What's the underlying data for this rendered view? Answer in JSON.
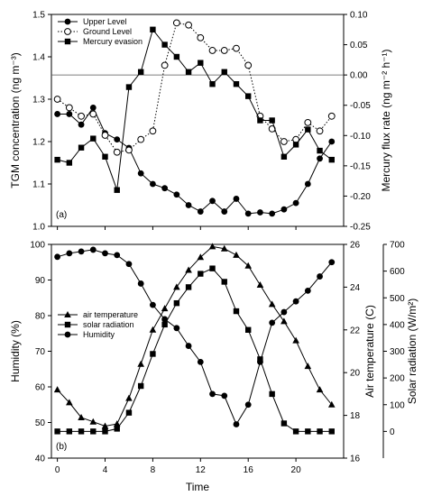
{
  "chart_data": [
    {
      "type": "line",
      "panel_label": "(a)",
      "x": [
        0,
        1,
        2,
        3,
        4,
        5,
        6,
        7,
        8,
        9,
        10,
        11,
        12,
        13,
        14,
        15,
        16,
        17,
        18,
        19,
        20,
        21,
        22,
        23
      ],
      "xlim": [
        -0.5,
        24
      ],
      "ylabel_left": "TGM concentration (ng m⁻³)",
      "ylim_left": [
        1.0,
        1.5
      ],
      "yticks_left": [
        "1.0",
        "1.1",
        "1.2",
        "1.3",
        "1.4",
        "1.5"
      ],
      "ylabel_right": "Mercury flux rate (ng m⁻² h⁻¹)",
      "ylim_right": [
        -0.25,
        0.1
      ],
      "yticks_right": [
        "-0.25",
        "-0.20",
        "-0.15",
        "-0.10",
        "-0.05",
        "0.00",
        "0.05",
        "0.10"
      ],
      "reference_line_right": 0.0,
      "series": [
        {
          "name": "Upper Level",
          "axis": "left",
          "marker": "circle-filled",
          "line": "solid",
          "values": [
            1.265,
            1.265,
            1.24,
            1.28,
            1.22,
            1.205,
            1.185,
            1.125,
            1.1,
            1.09,
            1.075,
            1.05,
            1.035,
            1.06,
            1.035,
            1.065,
            1.03,
            1.033,
            1.03,
            1.04,
            1.055,
            1.1,
            1.16,
            1.2
          ]
        },
        {
          "name": "Ground Level",
          "axis": "left",
          "marker": "circle-open",
          "line": "dotted",
          "values": [
            1.3,
            1.28,
            1.26,
            1.265,
            1.215,
            1.175,
            1.18,
            1.205,
            1.225,
            1.38,
            1.48,
            1.475,
            1.445,
            1.415,
            1.415,
            1.42,
            1.38,
            1.26,
            1.23,
            1.2,
            1.205,
            1.245,
            1.225,
            1.26
          ]
        },
        {
          "name": "Mercury evasion",
          "axis": "right",
          "marker": "square-filled",
          "line": "solid",
          "values": [
            -0.14,
            -0.145,
            -0.12,
            -0.105,
            -0.135,
            -0.19,
            -0.02,
            0.005,
            0.075,
            0.05,
            0.03,
            0.005,
            0.02,
            -0.015,
            0.005,
            -0.015,
            -0.035,
            -0.075,
            -0.075,
            -0.135,
            -0.115,
            -0.09,
            -0.125,
            -0.14
          ]
        }
      ],
      "legend_position": "top-left"
    },
    {
      "type": "line",
      "panel_label": "(b)",
      "x": [
        0,
        1,
        2,
        3,
        4,
        5,
        6,
        7,
        8,
        9,
        10,
        11,
        12,
        13,
        14,
        15,
        16,
        17,
        18,
        19,
        20,
        21,
        22,
        23
      ],
      "xlim": [
        -0.5,
        24
      ],
      "xlabel": "Time",
      "xticks": [
        "0",
        "4",
        "8",
        "12",
        "16",
        "20"
      ],
      "ylabel_left": "Humidity (%)",
      "ylim_left": [
        40,
        100
      ],
      "yticks_left": [
        "40",
        "50",
        "60",
        "70",
        "80",
        "90",
        "100"
      ],
      "ylabel_right1": "Air temperature (C)",
      "ylim_right1": [
        16,
        26
      ],
      "yticks_right1": [
        "16",
        "18",
        "20",
        "22",
        "24",
        "26"
      ],
      "ylabel_right2": "Solar radiation (W/m²)",
      "ylim_right2": [
        -100,
        700
      ],
      "yticks_right2": [
        "0",
        "100",
        "200",
        "300",
        "400",
        "500",
        "600",
        "700"
      ],
      "series": [
        {
          "name": "air temperature",
          "axis": "right1",
          "marker": "triangle-filled",
          "line": "solid",
          "values": [
            19.2,
            18.6,
            17.9,
            17.7,
            17.5,
            17.6,
            18.8,
            20.4,
            22.0,
            23.0,
            24.0,
            24.8,
            25.4,
            25.9,
            25.8,
            25.5,
            25.0,
            24.1,
            23.2,
            22.4,
            21.5,
            20.3,
            19.2,
            18.5
          ]
        },
        {
          "name": "solar radiation",
          "axis": "right2",
          "marker": "square-filled",
          "line": "solid",
          "values": [
            0,
            0,
            0,
            0,
            0,
            10,
            70,
            170,
            290,
            400,
            480,
            540,
            590,
            610,
            560,
            450,
            380,
            270,
            140,
            30,
            0,
            0,
            0,
            0
          ]
        },
        {
          "name": "Humidity",
          "axis": "left",
          "marker": "circle-filled",
          "line": "solid",
          "values": [
            96.5,
            97.5,
            98.0,
            98.5,
            97.5,
            97.0,
            94.5,
            89.0,
            83.0,
            79.0,
            76.5,
            71.5,
            67.0,
            58.0,
            57.5,
            49.5,
            55.0,
            67.0,
            78.0,
            81.0,
            84.0,
            87.0,
            91.0,
            95.0
          ]
        }
      ],
      "legend_position": "left"
    }
  ]
}
